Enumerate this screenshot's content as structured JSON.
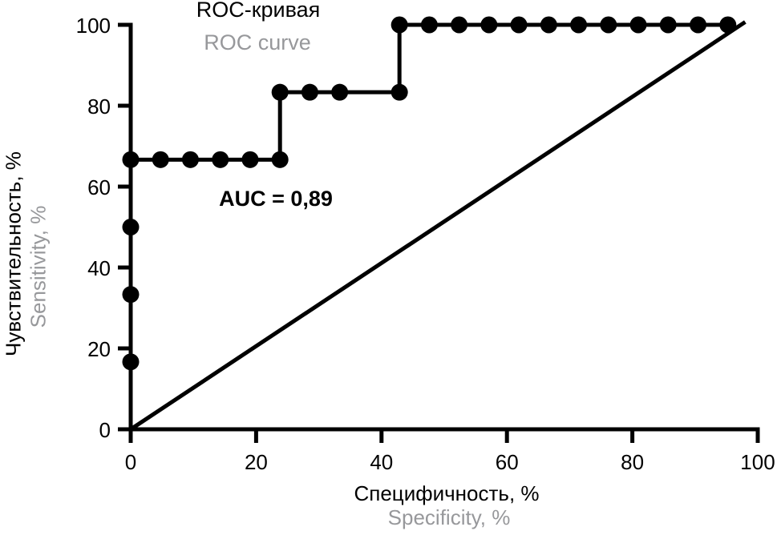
{
  "colors": {
    "primary": "#000000",
    "secondary_gray": "#97989b",
    "background": "#ffffff"
  },
  "chart_data": {
    "type": "line",
    "variant": "roc-step-curve",
    "title": "ROC-кривая",
    "subtitle": "ROC curve",
    "xlabel": "Специфичность, %",
    "xlabel_secondary": "Specificity, %",
    "ylabel": "Чувствительность, %",
    "ylabel_secondary": "Sensitivity, %",
    "annotation": "AUC = 0,89",
    "auc_value": 0.89,
    "xlim": [
      0,
      100
    ],
    "ylim": [
      0,
      100
    ],
    "xticks": [
      0,
      20,
      40,
      60,
      80,
      100
    ],
    "yticks": [
      0,
      20,
      40,
      60,
      80,
      100
    ],
    "grid": false,
    "legend": false,
    "series": [
      {
        "name": "ROC curve",
        "kind": "step",
        "color": "#000000",
        "line_width": 5,
        "marker": "circle",
        "marker_radius": 10.5,
        "path": [
          [
            0,
            0
          ],
          [
            0,
            66.67
          ],
          [
            23.81,
            66.67
          ],
          [
            23.81,
            83.33
          ],
          [
            42.86,
            83.33
          ],
          [
            42.86,
            100
          ],
          [
            95.24,
            100
          ]
        ],
        "markers": [
          [
            0,
            16.67
          ],
          [
            0,
            33.33
          ],
          [
            0,
            50
          ],
          [
            0,
            66.67
          ],
          [
            4.76,
            66.67
          ],
          [
            9.52,
            66.67
          ],
          [
            14.29,
            66.67
          ],
          [
            19.05,
            66.67
          ],
          [
            23.81,
            66.67
          ],
          [
            23.81,
            83.33
          ],
          [
            28.57,
            83.33
          ],
          [
            33.33,
            83.33
          ],
          [
            42.86,
            83.33
          ],
          [
            42.86,
            100
          ],
          [
            47.62,
            100
          ],
          [
            52.38,
            100
          ],
          [
            57.14,
            100
          ],
          [
            61.9,
            100
          ],
          [
            66.67,
            100
          ],
          [
            71.43,
            100
          ],
          [
            76.19,
            100
          ],
          [
            80.95,
            100
          ],
          [
            85.71,
            100
          ],
          [
            90.48,
            100
          ],
          [
            95.24,
            100
          ]
        ]
      },
      {
        "name": "Chance diagonal",
        "kind": "line",
        "color": "#000000",
        "line_width": 5,
        "marker": "none",
        "path": [
          [
            0,
            0
          ],
          [
            98,
            100.7
          ]
        ]
      }
    ]
  }
}
